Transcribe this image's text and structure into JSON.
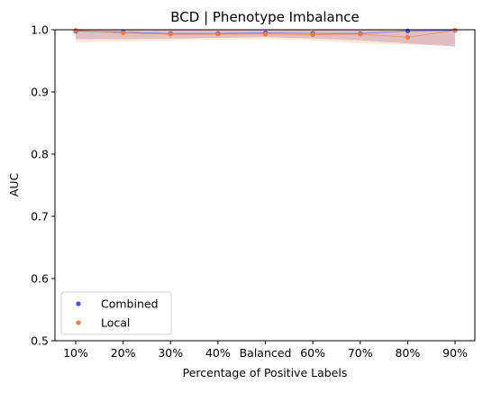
{
  "chart_data": {
    "type": "line",
    "title": "BCD | Phenotype Imbalance",
    "xlabel": "Percentage of Positive Labels",
    "ylabel": "AUC",
    "categories": [
      "10%",
      "20%",
      "30%",
      "40%",
      "Balanced",
      "60%",
      "70%",
      "80%",
      "90%"
    ],
    "ylim": [
      0.5,
      1.0
    ],
    "yticks": [
      "0.5",
      "0.6",
      "0.7",
      "0.8",
      "0.9",
      "1.0"
    ],
    "ytick_values": [
      0.5,
      0.6,
      0.7,
      0.8,
      0.9,
      1.0
    ],
    "grid": false,
    "legend": "lower-left",
    "series": [
      {
        "name": "Combined",
        "color": "#4d4ded",
        "band_color": "#9b6bb5",
        "values": [
          0.998,
          0.996,
          0.994,
          0.994,
          0.995,
          0.994,
          0.994,
          0.998,
          0.999
        ],
        "lower": [
          0.985,
          0.985,
          0.986,
          0.987,
          0.988,
          0.986,
          0.983,
          0.978,
          0.973
        ],
        "upper": [
          1.0,
          1.0,
          1.0,
          1.0,
          1.0,
          1.0,
          1.0,
          1.0,
          1.0
        ]
      },
      {
        "name": "Local",
        "color": "#f07a3c",
        "band_color": "#f4b27a",
        "values": [
          0.999,
          0.995,
          0.993,
          0.993,
          0.993,
          0.992,
          0.993,
          0.988,
          0.999
        ],
        "lower": [
          0.98,
          0.981,
          0.983,
          0.984,
          0.985,
          0.983,
          0.978,
          0.976,
          0.975
        ],
        "upper": [
          1.0,
          1.0,
          1.0,
          1.0,
          1.0,
          1.0,
          1.0,
          1.0,
          1.0
        ]
      }
    ]
  }
}
